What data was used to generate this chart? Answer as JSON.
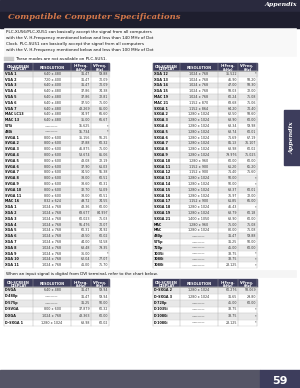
{
  "title": "Compatible Computer Specifications",
  "appendix_header": "Appendix",
  "page_number": "59",
  "description1": "PLC-XU56/PLC-XU51 can basically accept the signal from all computers with the V, H-Frequency mentioned below and less than 140 MHz of Dot Clock.  PLC-SU51 can basically accept the signal from all computers with the V, H-Frequency mentioned below and less than 100 MHz of Dot Clock.",
  "note": "These modes are not available on PLC-SU51.",
  "dvi_note": "When an input signal is digital from DVI terminal, refer to the chart below.",
  "main_table_headers": [
    "ON-SCREEN\nDISPLAY",
    "RESOLUTION",
    "H-Freq.\n(kHz)",
    "V-Freq.\n(Hz)"
  ],
  "main_table_left": [
    [
      "VGA 1",
      "640 x 480",
      "31.47",
      "59.88"
    ],
    [
      "VGA 2",
      "720 x 400",
      "31.47",
      "70.09"
    ],
    [
      "VGA 3",
      "640 x 400",
      "31.47",
      "70.09"
    ],
    [
      "VGA 4",
      "640 x 480",
      "37.86",
      "74.38"
    ],
    [
      "VGA 5",
      "640 x 480",
      "37.86",
      "72.81"
    ],
    [
      "VGA 6",
      "640 x 480",
      "37.50",
      "75.00"
    ],
    [
      "VGA 7",
      "640 x 480",
      "43.269",
      "85.00"
    ],
    [
      "MAC LC13",
      "640 x 480",
      "34.97",
      "66.60"
    ],
    [
      "MAC 13",
      "640 x 480",
      "35.00",
      "66.67"
    ],
    [
      "575i",
      "————",
      "15.625",
      "*"
    ],
    [
      "480i",
      "————",
      "15.734",
      "*"
    ],
    [
      "SVGA 1",
      "800 x 600",
      "35.156",
      "56.25"
    ],
    [
      "SVGA 2",
      "800 x 600",
      "37.88",
      "60.32"
    ],
    [
      "SVGA 3",
      "800 x 600",
      "46.875",
      "75.00"
    ],
    [
      "SVGA 4",
      "800 x 600",
      "53.674",
      "85.06"
    ],
    [
      "SVGA 5",
      "800 x 600",
      "48.08",
      "72.19"
    ],
    [
      "SVGA 6",
      "800 x 600",
      "37.90",
      "61.03"
    ],
    [
      "SVGA 7",
      "800 x 600",
      "34.50",
      "55.38"
    ],
    [
      "SVGA 8",
      "800 x 600",
      "38.00",
      "60.51"
    ],
    [
      "SVGA 9",
      "800 x 600",
      "38.60",
      "60.31"
    ],
    [
      "SVGA 10",
      "800 x 600",
      "32.70",
      "51.09"
    ],
    [
      "SVGA 11",
      "800 x 600",
      "38.00",
      "60.51"
    ],
    [
      "MAC 16",
      "832 x 624",
      "49.72",
      "74.55"
    ],
    [
      "XGA 1",
      "1024 x 768",
      "48.36",
      "60.00"
    ],
    [
      "XGA 2",
      "1024 x 768",
      "68.677",
      "84.997"
    ],
    [
      "XGA 3",
      "1024 x 768",
      "60.023",
      "75.03"
    ],
    [
      "XGA 4",
      "1024 x 768",
      "56.476",
      "70.07"
    ],
    [
      "XGA 5",
      "1024 x 768",
      "60.31",
      "74.92"
    ],
    [
      "XGA 6",
      "1024 x 768",
      "48.50",
      "60.02"
    ],
    [
      "XGA 7",
      "1024 x 768",
      "44.00",
      "54.58"
    ],
    [
      "XGA 8",
      "1024 x 768",
      "63.48",
      "79.35"
    ],
    [
      "XGA 9",
      "1024 x 768",
      "36.00",
      "*"
    ],
    [
      "XGA 10",
      "1024 x 768",
      "62.04",
      "77.07"
    ],
    [
      "XGA 11",
      "1024 x 768",
      "41.00",
      "75.70"
    ]
  ],
  "main_table_right": [
    [
      "XGA 12",
      "1024 x 768",
      "35.522",
      "*"
    ],
    [
      "XGA 13",
      "1024 x 768",
      "46.90",
      "58.20"
    ],
    [
      "XGA 14",
      "1024 x 768",
      "47.00",
      "58.30"
    ],
    [
      "XGA 15",
      "1024 x 768",
      "58.03",
      "72.00"
    ],
    [
      "MAC 19",
      "1024 x 768",
      "60.24",
      "75.08"
    ],
    [
      "MAC 21",
      "1152 x 870",
      "68.68",
      "75.06"
    ],
    [
      "SXGA 1",
      "1152 x 864",
      "64.20",
      "70.40"
    ],
    [
      "SXGA 2",
      "1280 x 1024",
      "62.50",
      "58.60"
    ],
    [
      "SXGA 3",
      "1280 x 1024",
      "63.90",
      "60.00"
    ],
    [
      "SXGA 4",
      "1280 x 1024",
      "63.34",
      "59.98"
    ],
    [
      "SXGA 5",
      "1280 x 1024",
      "63.74",
      "60.01"
    ],
    [
      "SXGA 6",
      "1280 x 1024",
      "71.69",
      "67.19"
    ],
    [
      "SXGA 7",
      "1280 x 1024",
      "81.13",
      "76.107"
    ],
    [
      "SXGA 8",
      "1280 x 1024",
      "63.98",
      "60.02"
    ],
    [
      "SXGA 9",
      "1280 x 1024",
      "79.976",
      "75.025"
    ],
    [
      "SXGA 10",
      "1280 x 960",
      "60.00",
      "60.00"
    ],
    [
      "SXGA 11",
      "1152 x 900",
      "61.20",
      "65.20"
    ],
    [
      "SXGA 12",
      "1152 x 900",
      "71.40",
      "75.60"
    ],
    [
      "SXGA 13",
      "1280 x 1024",
      "50.00",
      "*"
    ],
    [
      "SXGA 14",
      "1280 x 1024",
      "50.00",
      "*"
    ],
    [
      "SXGA 15",
      "1280 x 1024",
      "63.37",
      "60.01"
    ],
    [
      "SXGA 16",
      "1280 x 1024",
      "76.97",
      "72.00"
    ],
    [
      "SXGA 17",
      "1152 x 900",
      "61.85",
      "66.00"
    ],
    [
      "SXGA 18",
      "1280 x 1024",
      "46.43",
      "*"
    ],
    [
      "SXGA 19",
      "1280 x 1024",
      "63.79",
      "60.18"
    ],
    [
      "SXGA 21",
      "1400 x 1050",
      "63.90",
      "60.00"
    ],
    [
      "MAC",
      "1280 x 960",
      "75.00",
      "75.08"
    ],
    [
      "MAC",
      "1280 x 1024",
      "80.00",
      "75.08"
    ],
    [
      "480p",
      "————",
      "31.47",
      "59.88"
    ],
    [
      "575p",
      "————",
      "31.25",
      "50.00"
    ],
    [
      "720p",
      "————",
      "45.00",
      "60.00"
    ],
    [
      "1035i",
      "————",
      "33.75",
      "*"
    ],
    [
      "1080i",
      "————",
      "33.75",
      "*"
    ],
    [
      "1080i",
      "————",
      "28.125",
      "*"
    ]
  ],
  "dvi_table_left": [
    [
      "D-VGA",
      "640 x 480",
      "31.47",
      "59.94"
    ],
    [
      "D-480p",
      "————",
      "31.47",
      "59.94"
    ],
    [
      "D-575p",
      "————",
      "31.25",
      "50.00"
    ],
    [
      "D-SVGA",
      "800 x 600",
      "37.879",
      "60.32"
    ],
    [
      "D-XGA",
      "1024 x 768",
      "43.363",
      "60.00"
    ],
    [
      "D-SXGA 1",
      "1280 x 1024",
      "63.98",
      "60.02"
    ]
  ],
  "dvi_table_right": [
    [
      "D-SXGA 2",
      "1280 x 1024",
      "60.276",
      "58.069"
    ],
    [
      "D-SXGA 3",
      "1280 x 1024",
      "31.65",
      "29.80"
    ],
    [
      "D-720p",
      "————",
      "45.00",
      "60.00"
    ],
    [
      "D-1035i",
      "————",
      "33.75",
      "*"
    ],
    [
      "D-1080i",
      "————",
      "33.75",
      "*"
    ],
    [
      "D-1080i",
      "————",
      "28.125",
      "*"
    ]
  ],
  "bg_color": "#ffffff",
  "dark_header_color": "#1a1a2e",
  "orange_title_color": "#c8601a",
  "header_bg": "#3d3d5c",
  "header_text": "#ffffff",
  "shaded_row_color": "#e8e8e8",
  "side_tab_color": "#3d3d5c",
  "bottom_bar_color": "#444466",
  "page_num_color": "#ffffff"
}
